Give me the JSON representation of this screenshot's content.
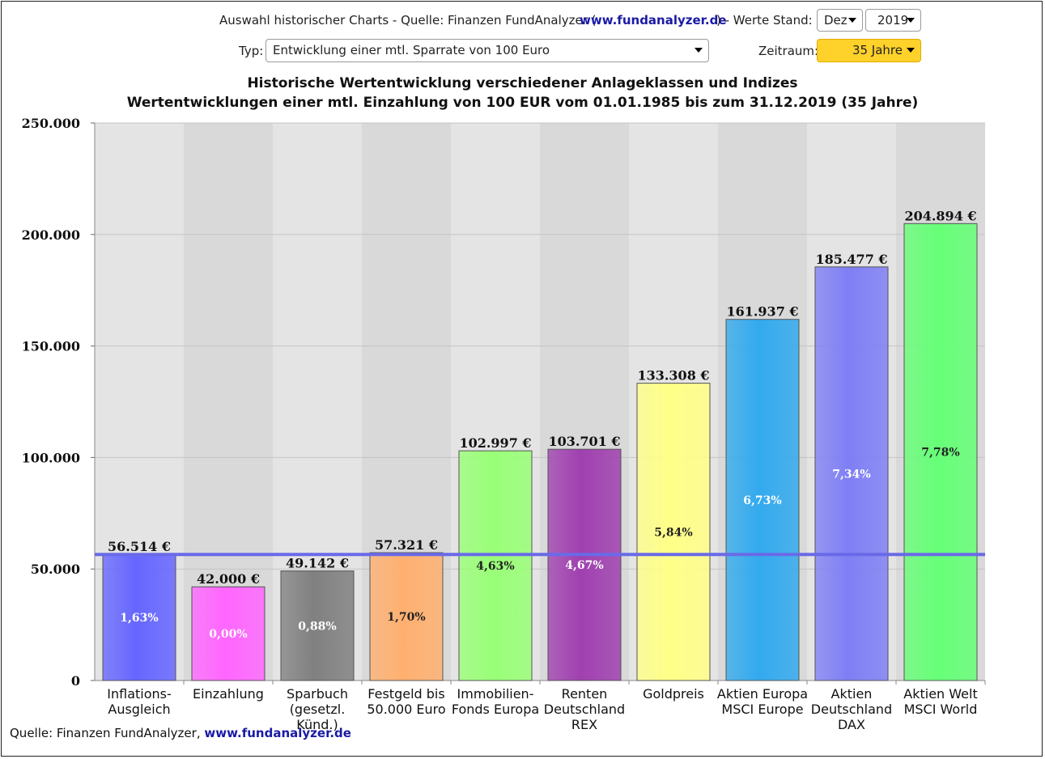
{
  "controls": {
    "auswahl_label": "Auswahl historischer Charts - Quelle: Finanzen FundAnalyzer (",
    "auswahl_link": "www.fundanalyzer.de",
    "werte_stand_label": ") - Werte Stand:",
    "month_value": "Dez",
    "year_value": "2019",
    "typ_label": "Typ:",
    "typ_value": "Entwicklung einer mtl. Sparrate von 100 Euro",
    "zeitraum_label": "Zeitraum:",
    "zeitraum_value": "35 Jahre"
  },
  "footer": {
    "source_label": "Quelle: Finanzen FundAnalyzer,",
    "source_link": "www.fundanalyzer.de"
  },
  "chart_data": {
    "type": "bar",
    "title": "Historische Wertentwicklung verschiedener Anlageklassen und Indizes",
    "subtitle": "Wertentwicklungen einer mtl. Einzahlung von 100 EUR vom 01.01.1985 bis zum 31.12.2019 (35 Jahre)",
    "categories": [
      [
        "Inflations-",
        "Ausgleich"
      ],
      [
        "Einzahlung"
      ],
      [
        "Sparbuch",
        "(gesetzl.",
        "Künd.)"
      ],
      [
        "Festgeld bis",
        "50.000 Euro"
      ],
      [
        "Immobilien-",
        "Fonds Europa"
      ],
      [
        "Renten",
        "Deutschland",
        "REX"
      ],
      [
        "Goldpreis"
      ],
      [
        "Aktien Europa",
        "MSCI Europe"
      ],
      [
        "Aktien",
        "Deutschland",
        "DAX"
      ],
      [
        "Aktien Welt",
        "MSCI World"
      ]
    ],
    "values": [
      56514,
      42000,
      49142,
      57321,
      102997,
      103701,
      133308,
      161937,
      185477,
      204894
    ],
    "value_labels": [
      "56.514 €",
      "42.000 €",
      "49.142 €",
      "57.321 €",
      "102.997 €",
      "103.701 €",
      "133.308 €",
      "161.937 €",
      "185.477 €",
      "204.894 €"
    ],
    "rate_labels": [
      "1,63%",
      "0,00%",
      "0,88%",
      "1,70%",
      "4,63%",
      "4,67%",
      "5,84%",
      "6,73%",
      "7,34%",
      "7,78%"
    ],
    "colors": [
      "#6666ff",
      "#ff66ff",
      "#808080",
      "#ffb070",
      "#99ff77",
      "#a040b0",
      "#ffff88",
      "#33aaee",
      "#7f7ff5",
      "#66ff77"
    ],
    "rate_label_colors": [
      "#ffffff",
      "#ffffff",
      "#ffffff",
      "#222222",
      "#222222",
      "#ffffff",
      "#222222",
      "#ffffff",
      "#ffffff",
      "#222222"
    ],
    "reference_line": {
      "value": 56514,
      "color": "#6a6ae8"
    },
    "ylim": [
      0,
      250000
    ],
    "y_ticks": [
      0,
      50000,
      100000,
      150000,
      200000,
      250000
    ],
    "y_tick_labels": [
      "0",
      "50.000",
      "100.000",
      "150.000",
      "200.000",
      "250.000"
    ],
    "grid": true,
    "legend": "none"
  }
}
